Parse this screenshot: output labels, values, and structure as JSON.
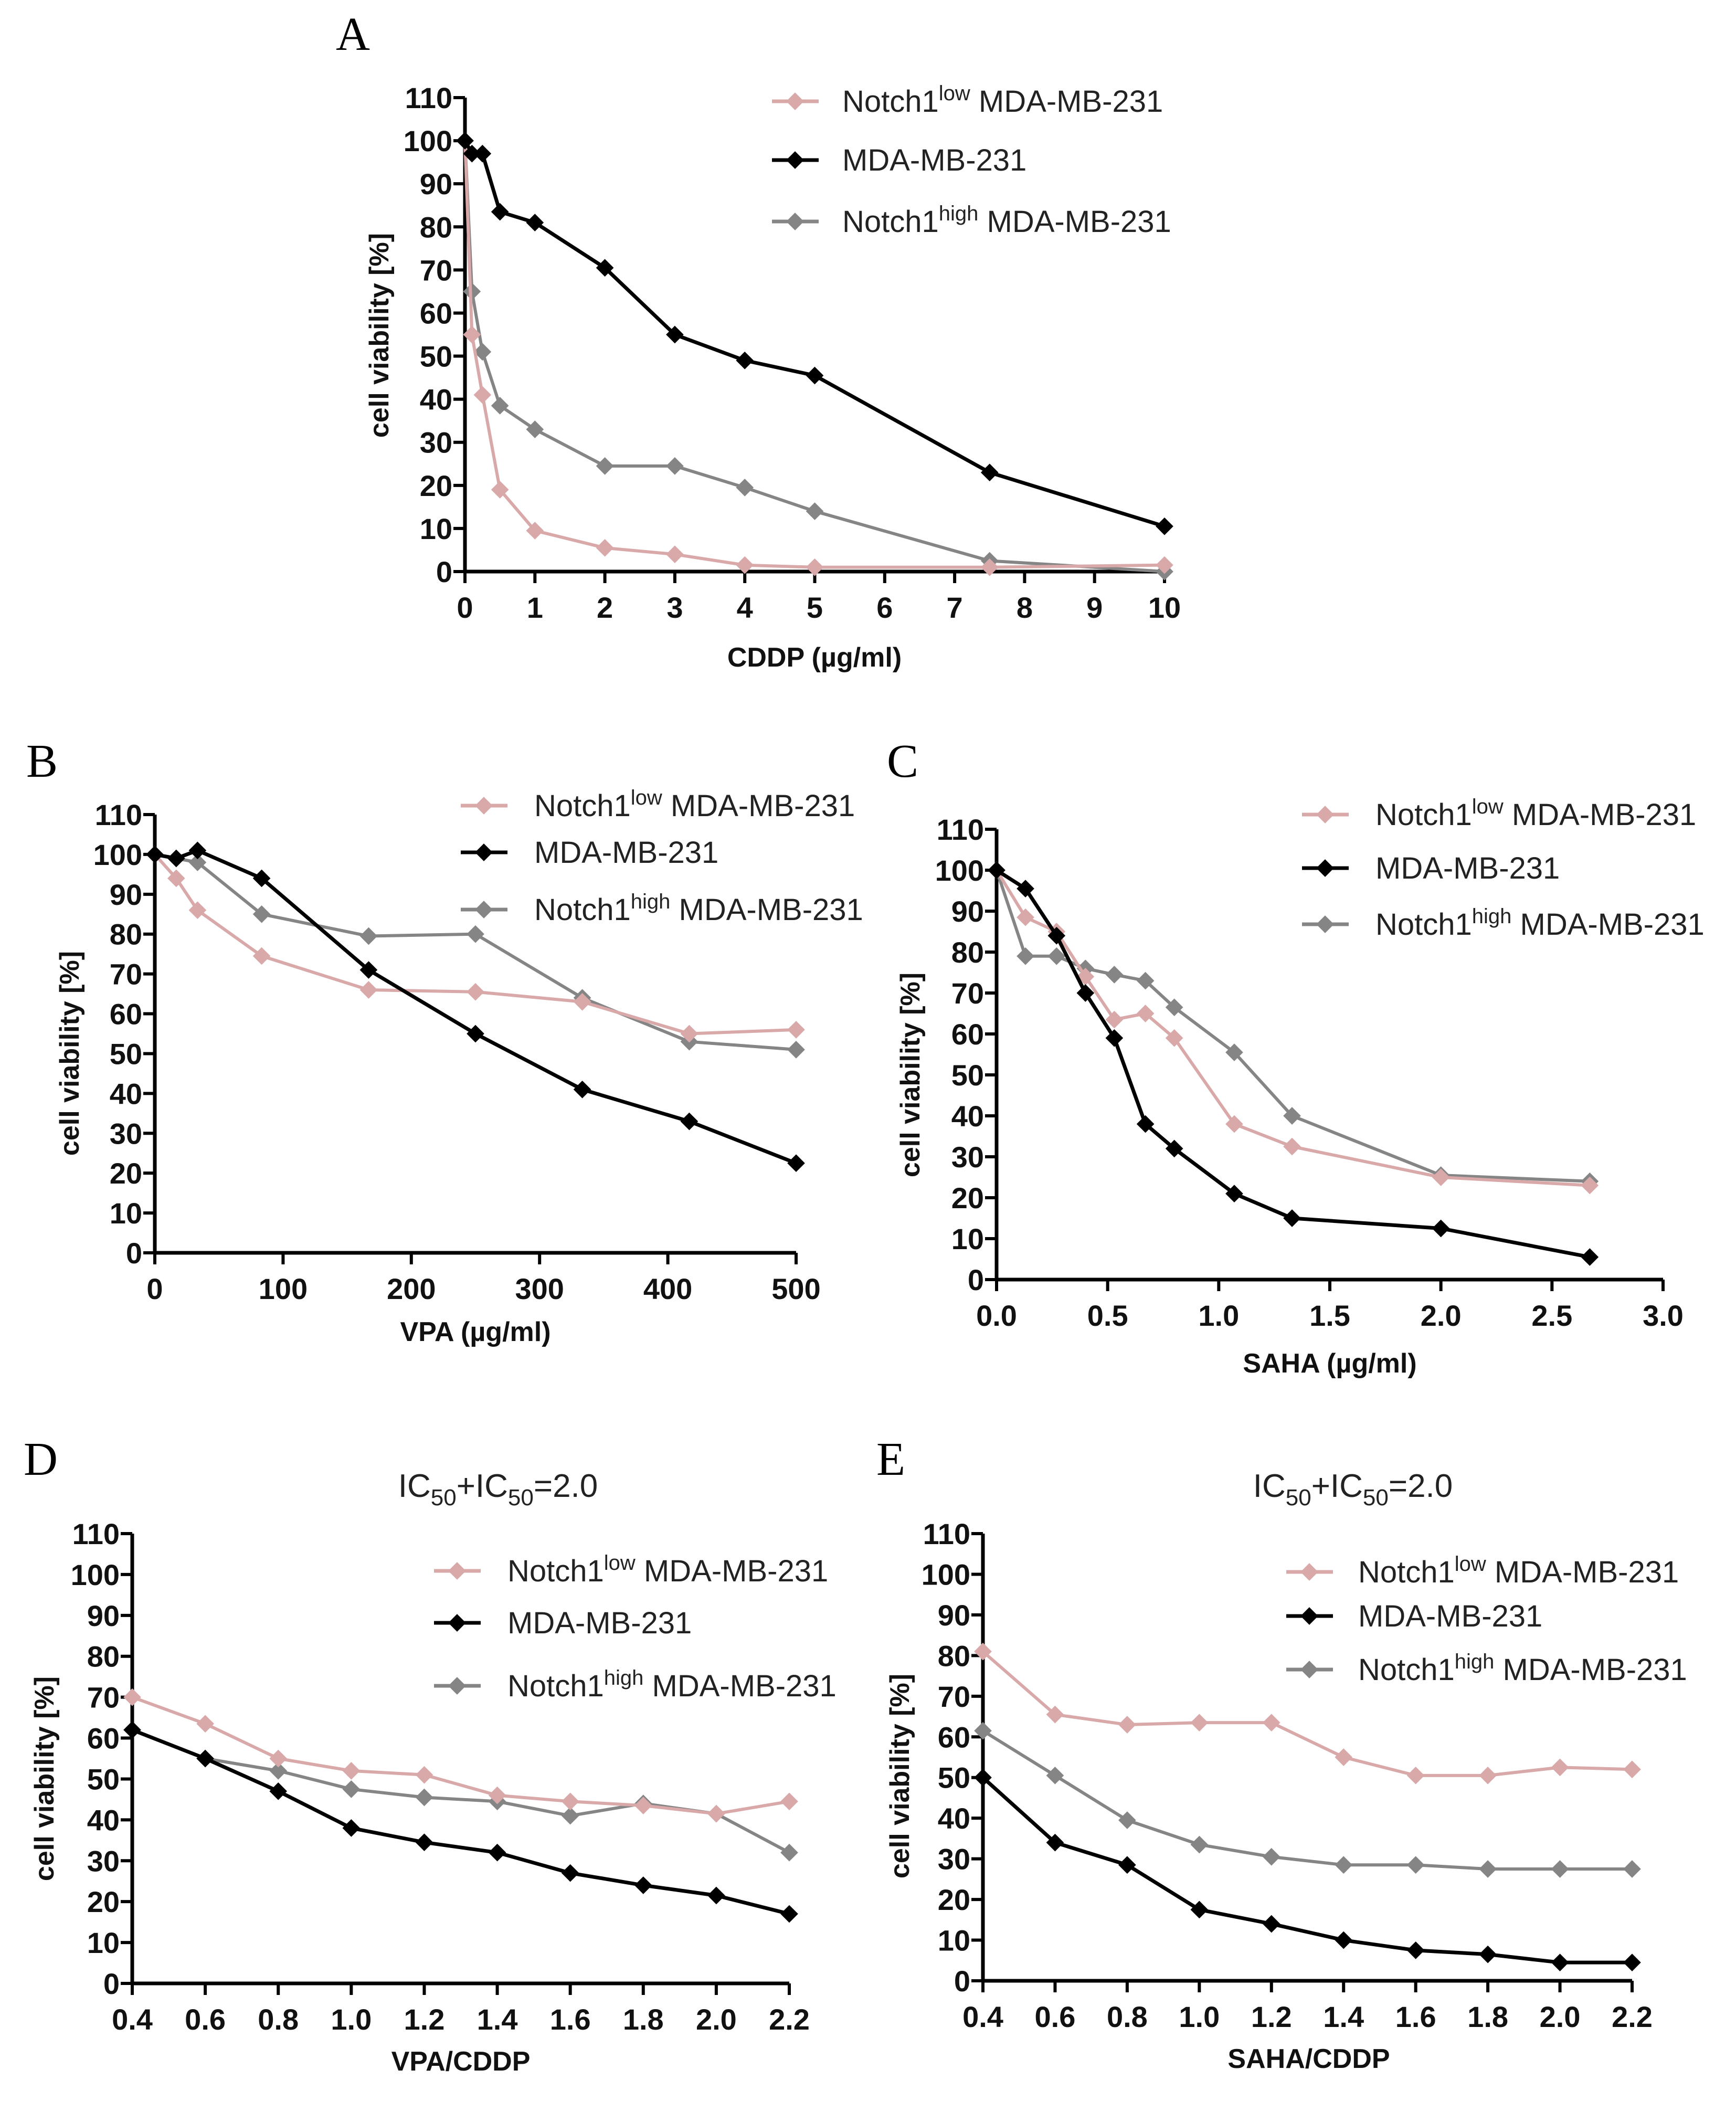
{
  "colors": {
    "low": "#d9a9aa",
    "parent": "#000000",
    "high": "#858585"
  },
  "legend": [
    {
      "key": "low",
      "base": "Notch1",
      "sup": "low",
      "suffix": " MDA-MB-231"
    },
    {
      "key": "parent",
      "base": "MDA-MB-231",
      "sup": "",
      "suffix": ""
    },
    {
      "key": "high",
      "base": "Notch1",
      "sup": "high",
      "suffix": " MDA-MB-231"
    }
  ],
  "chart_data": [
    {
      "panel": "A",
      "type": "line",
      "title": "",
      "xlabel": "CDDP (µg/ml)",
      "ylabel": "cell viability [%]",
      "xlim": [
        0,
        10
      ],
      "ylim": [
        0,
        110
      ],
      "xticks": [
        0,
        1,
        2,
        3,
        4,
        5,
        6,
        7,
        8,
        9,
        10
      ],
      "xtick_labels": [
        "0",
        "1",
        "2",
        "3",
        "4",
        "5",
        "6",
        "7",
        "8",
        "9",
        "10"
      ],
      "yticks": [
        0,
        10,
        20,
        30,
        40,
        50,
        60,
        70,
        80,
        90,
        100,
        110
      ],
      "ytick_labels": [
        "0",
        "10",
        "20",
        "30",
        "40",
        "50",
        "60",
        "70",
        "80",
        "90",
        "100",
        "110"
      ],
      "legend_position": "top-right",
      "x": [
        0,
        0.1,
        0.25,
        0.5,
        1,
        2,
        3,
        4,
        5,
        7.5,
        10
      ],
      "series": [
        {
          "key": "low",
          "name": "Notch1low MDA-MB-231",
          "values": [
            100,
            55,
            41,
            19,
            9.5,
            5.5,
            4,
            1.5,
            1,
            1,
            1.5
          ]
        },
        {
          "key": "parent",
          "name": "MDA-MB-231",
          "values": [
            100,
            97,
            97,
            83.5,
            81,
            70.5,
            55,
            49,
            45.5,
            23,
            10.5
          ]
        },
        {
          "key": "high",
          "name": "Notch1high MDA-MB-231",
          "values": [
            100,
            65,
            51,
            38.5,
            33,
            24.5,
            24.5,
            19.5,
            14,
            2.5,
            0
          ]
        }
      ]
    },
    {
      "panel": "B",
      "type": "line",
      "title": "",
      "xlabel": "VPA (µg/ml)",
      "ylabel": "cell viability [%]",
      "xlim": [
        0,
        500
      ],
      "ylim": [
        0,
        110
      ],
      "xticks": [
        0,
        100,
        200,
        300,
        400,
        500
      ],
      "xtick_labels": [
        "0",
        "100",
        "200",
        "300",
        "400",
        "500"
      ],
      "yticks": [
        0,
        10,
        20,
        30,
        40,
        50,
        60,
        70,
        80,
        90,
        100,
        110
      ],
      "ytick_labels": [
        "0",
        "10",
        "20",
        "30",
        "40",
        "50",
        "60",
        "70",
        "80",
        "90",
        "100",
        "110"
      ],
      "legend_position": "top-right",
      "x": [
        0,
        16.7,
        33.3,
        83.3,
        166.7,
        250,
        333.3,
        416.7,
        500
      ],
      "series": [
        {
          "key": "low",
          "name": "Notch1low MDA-MB-231",
          "values": [
            100,
            94,
            86,
            74.5,
            66,
            65.5,
            63,
            55,
            56
          ]
        },
        {
          "key": "parent",
          "name": "MDA-MB-231",
          "values": [
            100,
            99,
            101,
            94,
            71,
            55,
            41,
            33,
            22.5
          ]
        },
        {
          "key": "high",
          "name": "Notch1high MDA-MB-231",
          "values": [
            100,
            99,
            98,
            85,
            79.5,
            80,
            64,
            53,
            51
          ]
        }
      ]
    },
    {
      "panel": "C",
      "type": "line",
      "title": "",
      "xlabel": "SAHA (µg/ml)",
      "ylabel": "cell viability [%]",
      "xlim": [
        0,
        3
      ],
      "ylim": [
        0,
        110
      ],
      "xticks": [
        0,
        0.5,
        1,
        1.5,
        2,
        2.5,
        3
      ],
      "xtick_labels": [
        "0.0",
        "0.5",
        "1.0",
        "1.5",
        "2.0",
        "2.5",
        "3.0"
      ],
      "yticks": [
        0,
        10,
        20,
        30,
        40,
        50,
        60,
        70,
        80,
        90,
        100,
        110
      ],
      "ytick_labels": [
        "0",
        "10",
        "20",
        "30",
        "40",
        "50",
        "60",
        "70",
        "80",
        "90",
        "100",
        "110"
      ],
      "legend_position": "top-right",
      "x": [
        0,
        0.13,
        0.27,
        0.4,
        0.53,
        0.67,
        0.8,
        1.07,
        1.33,
        2,
        2.67
      ],
      "series": [
        {
          "key": "low",
          "name": "Notch1low MDA-MB-231",
          "values": [
            100,
            88.5,
            85,
            74,
            63.5,
            65,
            59,
            38,
            32.5,
            25,
            23
          ]
        },
        {
          "key": "parent",
          "name": "MDA-MB-231",
          "values": [
            100,
            95.5,
            84,
            70,
            59,
            38,
            32,
            21,
            15,
            12.5,
            5.5
          ]
        },
        {
          "key": "high",
          "name": "Notch1high MDA-MB-231",
          "values": [
            100,
            79,
            79,
            76,
            74.5,
            73,
            66.5,
            55.5,
            40,
            25.5,
            24
          ]
        }
      ]
    },
    {
      "panel": "D",
      "type": "line",
      "title_parts": [
        "IC",
        "50",
        "+IC",
        "50",
        "=2.0"
      ],
      "xlabel": "VPA/CDDP",
      "ylabel": "cell viability [%]",
      "xlim": [
        0.4,
        2.2
      ],
      "ylim": [
        0,
        110
      ],
      "xticks": [
        0.4,
        0.6,
        0.8,
        1.0,
        1.2,
        1.4,
        1.6,
        1.8,
        2.0,
        2.2
      ],
      "xtick_labels": [
        "0.4",
        "0.6",
        "0.8",
        "1.0",
        "1.2",
        "1.4",
        "1.6",
        "1.8",
        "2.0",
        "2.2"
      ],
      "yticks": [
        0,
        10,
        20,
        30,
        40,
        50,
        60,
        70,
        80,
        90,
        100,
        110
      ],
      "ytick_labels": [
        "0",
        "10",
        "20",
        "30",
        "40",
        "50",
        "60",
        "70",
        "80",
        "90",
        "100",
        "110"
      ],
      "legend_position": "top-right",
      "x": [
        0.4,
        0.6,
        0.8,
        1.0,
        1.2,
        1.4,
        1.6,
        1.8,
        2.0,
        2.2
      ],
      "series": [
        {
          "key": "low",
          "name": "Notch1low MDA-MB-231",
          "values": [
            70,
            63.5,
            55,
            52,
            51,
            46,
            44.5,
            43.5,
            41.5,
            44.5
          ]
        },
        {
          "key": "parent",
          "name": "MDA-MB-231",
          "values": [
            62,
            55,
            47,
            38,
            34.5,
            32,
            27,
            24,
            21.5,
            17
          ]
        },
        {
          "key": "high",
          "name": "Notch1high MDA-MB-231",
          "values": [
            62,
            55,
            52,
            47.5,
            45.5,
            44.5,
            41,
            44,
            41.5,
            32
          ]
        }
      ]
    },
    {
      "panel": "E",
      "type": "line",
      "title_parts": [
        "IC",
        "50",
        "+IC",
        "50",
        "=2.0"
      ],
      "xlabel": "SAHA/CDDP",
      "ylabel": "cell viability [%]",
      "xlim": [
        0.4,
        2.2
      ],
      "ylim": [
        0,
        110
      ],
      "xticks": [
        0.4,
        0.6,
        0.8,
        1.0,
        1.2,
        1.4,
        1.6,
        1.8,
        2.0,
        2.2
      ],
      "xtick_labels": [
        "0.4",
        "0.6",
        "0.8",
        "1.0",
        "1.2",
        "1.4",
        "1.6",
        "1.8",
        "2.0",
        "2.2"
      ],
      "yticks": [
        0,
        10,
        20,
        30,
        40,
        50,
        60,
        70,
        80,
        90,
        100,
        110
      ],
      "ytick_labels": [
        "0",
        "10",
        "20",
        "30",
        "40",
        "50",
        "60",
        "70",
        "80",
        "90",
        "100",
        "110"
      ],
      "legend_position": "top-right",
      "x": [
        0.4,
        0.6,
        0.8,
        1.0,
        1.2,
        1.4,
        1.6,
        1.8,
        2.0,
        2.2
      ],
      "series": [
        {
          "key": "low",
          "name": "Notch1low MDA-MB-231",
          "values": [
            81,
            65.5,
            63,
            63.5,
            63.5,
            55,
            50.5,
            50.5,
            52.5,
            52
          ]
        },
        {
          "key": "parent",
          "name": "MDA-MB-231",
          "values": [
            50,
            34,
            28.5,
            17.5,
            14,
            10,
            7.5,
            6.5,
            4.5,
            4.5
          ]
        },
        {
          "key": "high",
          "name": "Notch1high MDA-MB-231",
          "values": [
            61.5,
            50.5,
            39.5,
            33.5,
            30.5,
            28.5,
            28.5,
            27.5,
            27.5,
            27.5
          ]
        }
      ]
    }
  ]
}
